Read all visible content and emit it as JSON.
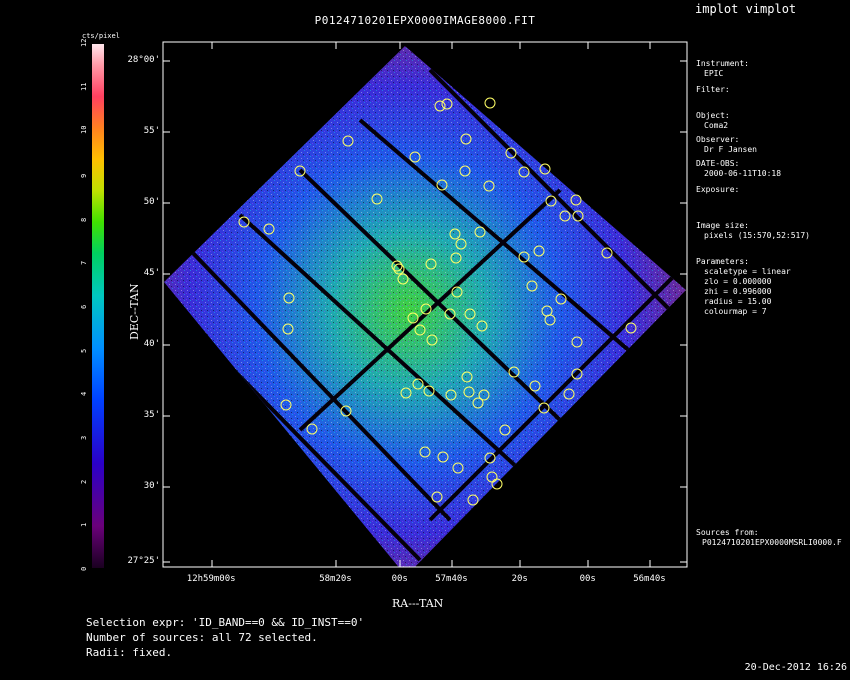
{
  "window": {
    "title": "P0124710201EPX0000IMAGE8000.FIT",
    "app": "implot vimplot"
  },
  "colorbar": {
    "unit_label": "cts/pixel",
    "ticks": [
      "0",
      "1",
      "2",
      "3",
      "4",
      "5",
      "6",
      "7",
      "8",
      "9",
      "10",
      "11",
      "12"
    ]
  },
  "chart_data": {
    "type": "heatmap",
    "title": "P0124710201EPX0000IMAGE8000.FIT",
    "xlabel": "RA---TAN",
    "ylabel": "DEC--TAN",
    "x_ticks": [
      "12h59m00s",
      "58m20s",
      "00s",
      "57m40s",
      "20s",
      "00s",
      "56m40s"
    ],
    "y_ticks": [
      "28°00'",
      "55'",
      "50'",
      "45'",
      "40'",
      "35'",
      "30'",
      "27°25'"
    ],
    "colorbar_range": [
      0,
      12
    ],
    "colormap": 7,
    "scaletype": "linear",
    "zlo": 0.0,
    "zhi": 0.996,
    "n_sources": 72
  },
  "info_panel": {
    "instrument_label": "Instrument:",
    "instrument": "EPIC",
    "filter_label": "Filter:",
    "object_label": "Object:",
    "object": "Coma2",
    "observer_label": "Observer:",
    "observer": "Dr F Jansen",
    "date_obs_label": "DATE-OBS:",
    "date_obs": "2000-06-11T10:18",
    "exposure_label": "Exposure:",
    "image_size_label": "Image size:",
    "image_size": "pixels (15:570,52:517)",
    "parameters_label": "Parameters:",
    "scaletype": "scaletype = linear",
    "zlo": "zlo   = 0.000000",
    "zhi": "zhi   = 0.996000",
    "radius": "radius =  15.00",
    "colourmap": "colourmap =   7",
    "sources_label": "Sources from:",
    "sources_file": "P0124710201EPX0000MSRLI0000.F"
  },
  "footer": {
    "selection": "Selection expr: 'ID_BAND==0 && ID_INST==0'",
    "number": "Number of sources: all 72 selected.",
    "radii": "Radii: fixed."
  },
  "timestamp": "20-Dec-2012 16:26",
  "colors": {
    "background": "#000000",
    "source_circle": "#ffff66",
    "text": "#ffffff"
  }
}
